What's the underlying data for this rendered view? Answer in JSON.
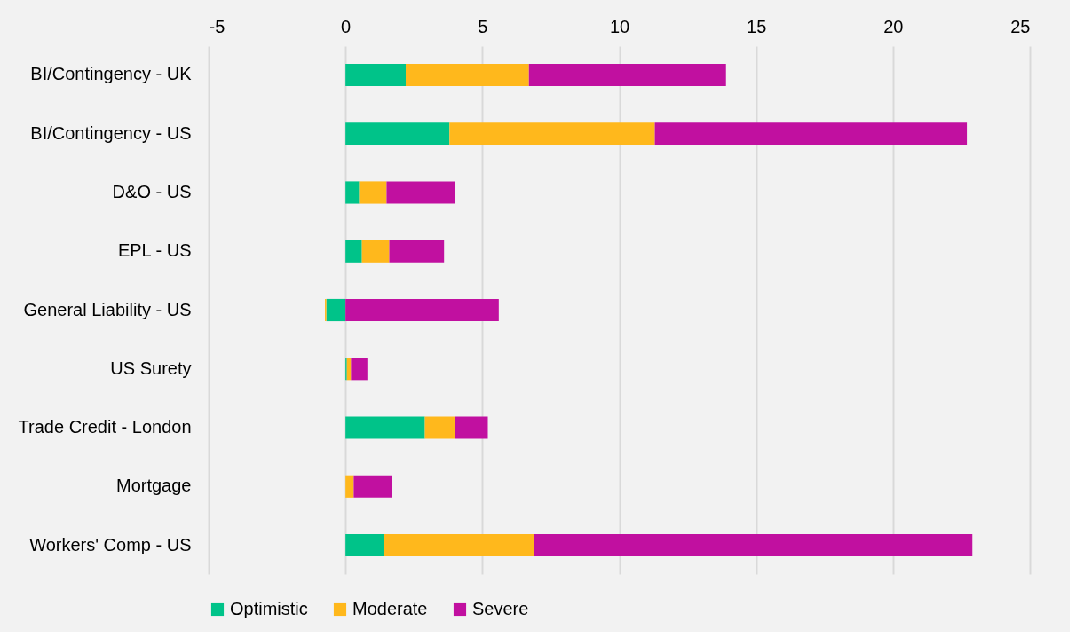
{
  "chart_data": {
    "type": "bar",
    "orientation": "horizontal",
    "stacked": true,
    "categories": [
      "BI/Contingency - UK",
      "BI/Contingency - US",
      "D&O - US",
      "EPL - US",
      "General Liability - US",
      "US Surety",
      "Trade Credit - London",
      "Mortgage",
      "Workers' Comp - US"
    ],
    "series": [
      {
        "name": "Optimistic",
        "color": "#00c389",
        "values": [
          2.2,
          3.8,
          0.5,
          0.6,
          -0.7,
          0.05,
          2.9,
          0,
          1.4
        ]
      },
      {
        "name": "Moderate",
        "color": "#ffb81c",
        "values": [
          4.5,
          7.5,
          1.0,
          1.0,
          -0.05,
          0.15,
          1.1,
          0.3,
          5.5
        ]
      },
      {
        "name": "Severe",
        "color": "#c110a0",
        "values": [
          7.2,
          11.4,
          2.5,
          2.0,
          5.6,
          0.6,
          1.2,
          1.4,
          16.0
        ]
      }
    ],
    "xlim": [
      -5,
      25
    ],
    "xticks": [
      -5,
      0,
      5,
      10,
      15,
      20,
      25
    ],
    "grid": "x",
    "legend": "bottom"
  }
}
